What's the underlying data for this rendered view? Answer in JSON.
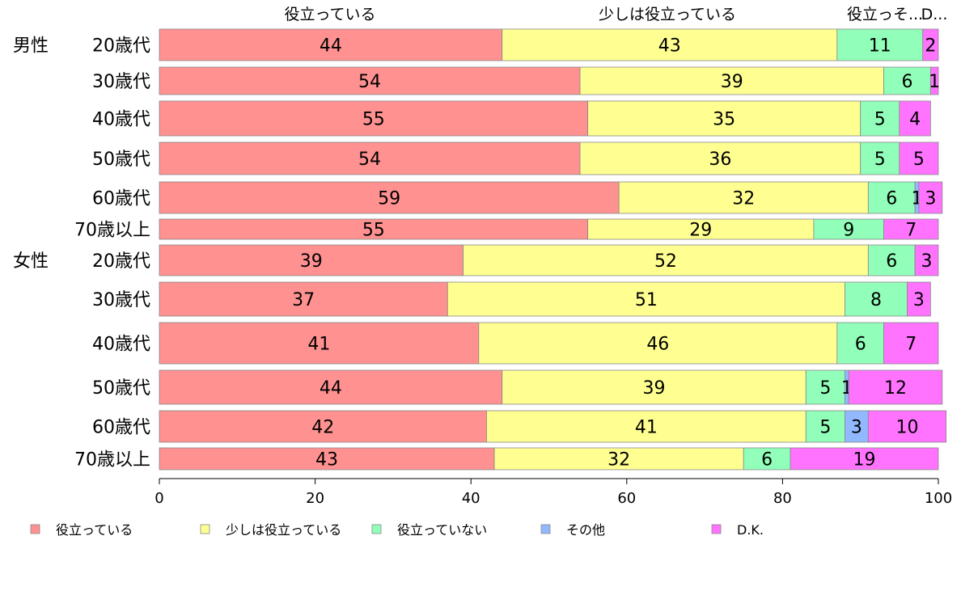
{
  "chart_data": {
    "type": "bar",
    "orientation": "horizontal",
    "stacked": true,
    "top_labels": [
      "役立っている",
      "少しは役立っている",
      "役立っていない",
      "その他",
      "D.K."
    ],
    "top_label_shown": [
      "役立っている",
      "少しは役立っている",
      "役立っそ...",
      "D..."
    ],
    "group_labels": [
      "男性",
      "女性"
    ],
    "categories": [
      "20歳代",
      "30歳代",
      "40歳代",
      "50歳代",
      "60歳代",
      "70歳以上",
      "20歳代",
      "30歳代",
      "40歳代",
      "50歳代",
      "60歳代",
      "70歳以上"
    ],
    "series": [
      {
        "name": "役立っている",
        "color": "#ff9191",
        "values": [
          44,
          54,
          55,
          54,
          59,
          55,
          39,
          37,
          41,
          44,
          42,
          43
        ]
      },
      {
        "name": "少しは役立っている",
        "color": "#ffff91",
        "values": [
          43,
          39,
          35,
          36,
          32,
          29,
          52,
          51,
          46,
          39,
          41,
          32
        ]
      },
      {
        "name": "役立っていない",
        "color": "#91ffb9",
        "values": [
          11,
          6,
          5,
          5,
          6,
          9,
          6,
          8,
          6,
          5,
          5,
          6
        ]
      },
      {
        "name": "その他",
        "color": "#91b9ff",
        "values": [
          0,
          0,
          0,
          0,
          0.5,
          0,
          0,
          0,
          0,
          0.5,
          3,
          0
        ]
      },
      {
        "name": "D.K.",
        "color": "#ff73ff",
        "values": [
          2,
          1,
          4,
          5,
          3,
          7,
          3,
          3,
          7,
          12,
          10,
          19
        ]
      }
    ],
    "data_labels": [
      [
        "44",
        "43",
        "11",
        "",
        "2"
      ],
      [
        "54",
        "39",
        "6",
        "",
        "1"
      ],
      [
        "55",
        "35",
        "5",
        "",
        "4"
      ],
      [
        "54",
        "36",
        "5",
        "",
        "5"
      ],
      [
        "59",
        "32",
        "6",
        "1",
        "3"
      ],
      [
        "55",
        "29",
        "9",
        "",
        "7"
      ],
      [
        "39",
        "52",
        "6",
        "",
        "3"
      ],
      [
        "37",
        "51",
        "8",
        "",
        "3"
      ],
      [
        "41",
        "46",
        "6",
        "",
        "7"
      ],
      [
        "44",
        "39",
        "5",
        "1",
        "12"
      ],
      [
        "42",
        "41",
        "5",
        "3",
        "10"
      ],
      [
        "43",
        "32",
        "6",
        "",
        "19"
      ]
    ],
    "xlim": [
      0,
      100
    ],
    "xticks": [
      0,
      20,
      40,
      60,
      80,
      100
    ],
    "legend_position": "bottom",
    "grid": false
  }
}
